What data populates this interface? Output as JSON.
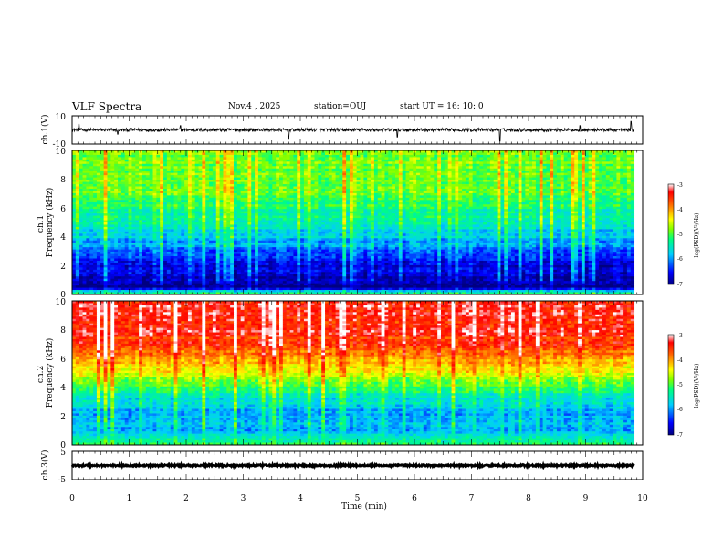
{
  "header": {
    "title": "VLF Spectra",
    "date": "Nov.4 , 2025",
    "station": "station=OUJ",
    "start_ut": "start UT = 16: 10: 0"
  },
  "chart_data": [
    {
      "type": "line",
      "panel": "ch1-waveform",
      "ylabel": "ch.1(V)",
      "ylim": [
        -10,
        10
      ],
      "ytick_labels": [
        "10",
        "-10"
      ],
      "xlim": [
        0,
        10
      ],
      "baseline": 0,
      "noise_amplitude": 1.2,
      "spikes": [
        {
          "x": 0.12,
          "y": 4
        },
        {
          "x": 0.8,
          "y": -3
        },
        {
          "x": 1.9,
          "y": 3
        },
        {
          "x": 3.8,
          "y": -6
        },
        {
          "x": 5.7,
          "y": -5
        },
        {
          "x": 7.5,
          "y": -8
        },
        {
          "x": 8.9,
          "y": 3
        },
        {
          "x": 9.8,
          "y": 6
        }
      ]
    },
    {
      "type": "heatmap",
      "panel": "ch1-spectrogram",
      "ylabel": "ch.1\nFrequency (kHz)",
      "ylim": [
        0,
        10
      ],
      "ytick_labels": [
        "0",
        "2",
        "4",
        "6",
        "8",
        "10"
      ],
      "xlim": [
        0,
        9.85
      ],
      "colorbar_label": "log(PSD)(V²/Hz)",
      "clim": [
        -7,
        -3
      ],
      "colorbar_ticks": [
        "-3",
        "-4",
        "-5",
        "-6",
        "-7"
      ],
      "profile_khz": [
        0,
        0.5,
        1,
        1.5,
        2,
        2.5,
        3,
        3.5,
        4,
        5,
        6,
        7,
        8,
        9,
        10
      ],
      "profile_log_psd": [
        -4.8,
        -6.9,
        -6.8,
        -6.6,
        -6.7,
        -6.5,
        -6.2,
        -6.0,
        -5.8,
        -5.5,
        -5.2,
        -5.0,
        -4.9,
        -4.9,
        -4.9
      ]
    },
    {
      "type": "heatmap",
      "panel": "ch2-spectrogram",
      "ylabel": "ch.2\nFrequency (kHz)",
      "ylim": [
        0,
        10
      ],
      "ytick_labels": [
        "0",
        "2",
        "4",
        "6",
        "8",
        "10"
      ],
      "xlim": [
        0,
        9.85
      ],
      "colorbar_label": "log(PSD)(V²/Hz)",
      "clim": [
        -7,
        -3
      ],
      "colorbar_ticks": [
        "-3",
        "-4",
        "-5",
        "-6",
        "-7"
      ],
      "profile_khz": [
        0,
        0.5,
        1,
        2,
        3,
        3.5,
        4,
        5,
        6,
        7,
        8,
        9,
        10
      ],
      "profile_log_psd": [
        -5.2,
        -5.6,
        -5.8,
        -5.9,
        -5.6,
        -5.4,
        -5.0,
        -4.5,
        -4.0,
        -3.6,
        -3.4,
        -3.4,
        -3.4
      ]
    },
    {
      "type": "line",
      "panel": "ch3-waveform",
      "ylabel": "ch.3(V)",
      "ylim": [
        -5,
        5
      ],
      "ytick_labels": [
        "5",
        "-5"
      ],
      "xlim": [
        0,
        10
      ],
      "xlabel": "Time (min)",
      "xtick_labels": [
        "0",
        "1",
        "2",
        "3",
        "4",
        "5",
        "6",
        "7",
        "8",
        "9",
        "10"
      ],
      "baseline": 0,
      "noise_amplitude": 0.3
    }
  ],
  "colors": {
    "cmap": [
      "#00008b",
      "#0000ff",
      "#00aaff",
      "#00ffaa",
      "#66ff33",
      "#ffff00",
      "#ff8800",
      "#ff0000",
      "#ffffff"
    ]
  }
}
